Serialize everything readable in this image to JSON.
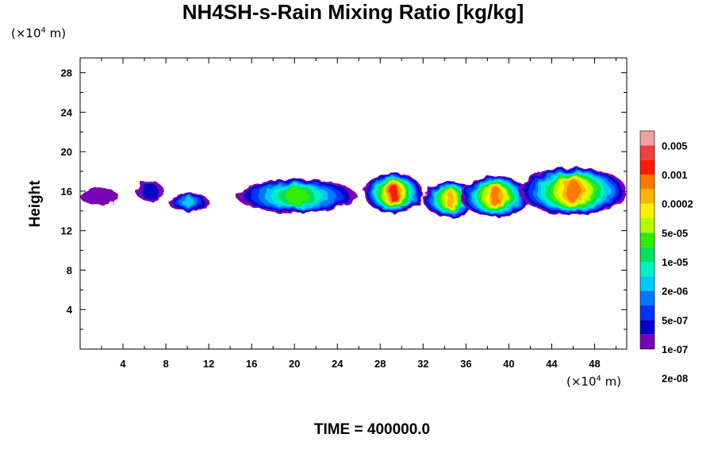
{
  "chart_data": {
    "type": "heatmap",
    "title": "NH4SH-s-Rain Mixing Ratio [kg/kg]",
    "ylabel": "Height",
    "y_unit": "10^4 m",
    "x_unit": "10^4 m",
    "xlim": [
      0,
      51
    ],
    "ylim": [
      0,
      29.5
    ],
    "x_ticks": [
      4,
      8,
      12,
      16,
      20,
      24,
      28,
      32,
      36,
      40,
      44,
      48
    ],
    "y_ticks": [
      4,
      8,
      12,
      16,
      20,
      24,
      28
    ],
    "footer": "TIME = 400000.0",
    "colorbar": {
      "levels": [
        "0.005",
        "0.001",
        "0.0002",
        "5e-05",
        "1e-05",
        "2e-06",
        "5e-07",
        "1e-07",
        "2e-08"
      ],
      "colors": [
        "#f5a0a0",
        "#ee4040",
        "#ff1a00",
        "#ff7800",
        "#ffb400",
        "#fff000",
        "#b0ff00",
        "#30ee00",
        "#00e060",
        "#00f0c8",
        "#00c8ff",
        "#0078ff",
        "#0032ff",
        "#0000c8",
        "#7a00b8"
      ]
    },
    "blobs": [
      {
        "x0": 0.0,
        "x1": 3.6,
        "y0": 14.6,
        "y1": 16.3,
        "level": 1
      },
      {
        "x0": 5.2,
        "x1": 7.8,
        "y0": 15.0,
        "y1": 17.0,
        "level": 2
      },
      {
        "x0": 8.2,
        "x1": 12.0,
        "y0": 14.0,
        "y1": 15.8,
        "level": 5
      },
      {
        "x0": 14.6,
        "x1": 25.8,
        "y0": 13.8,
        "y1": 17.2,
        "level": 8
      },
      {
        "x0": 26.5,
        "x1": 32.0,
        "y0": 13.8,
        "y1": 17.8,
        "level": 13
      },
      {
        "x0": 32.0,
        "x1": 37.0,
        "y0": 13.4,
        "y1": 17.0,
        "level": 11
      },
      {
        "x0": 35.5,
        "x1": 42.0,
        "y0": 13.4,
        "y1": 17.5,
        "level": 12
      },
      {
        "x0": 41.0,
        "x1": 51.0,
        "y0": 13.6,
        "y1": 18.4,
        "level": 12
      }
    ]
  }
}
